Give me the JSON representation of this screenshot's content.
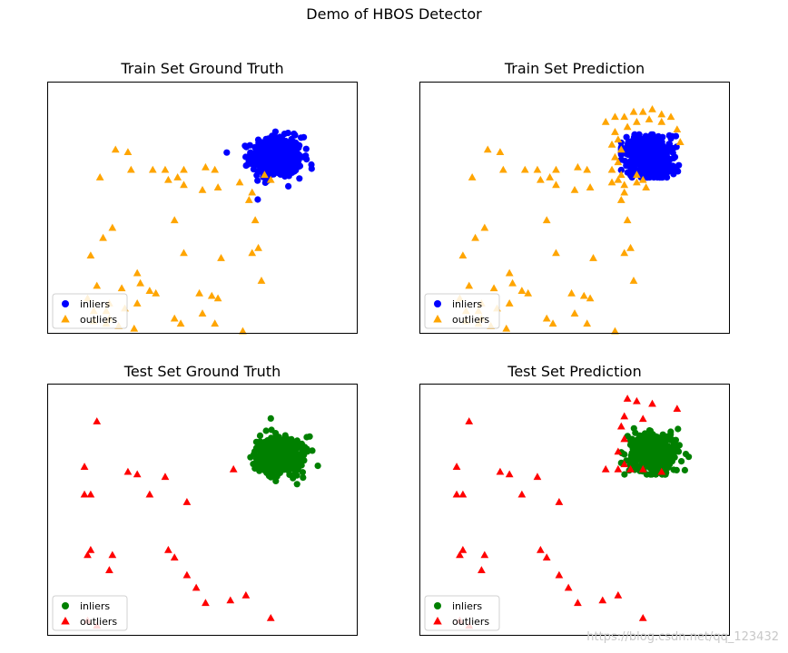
{
  "figure_title": "Demo of HBOS Detector",
  "watermark": "https://blog.csdn.net/qq_123432",
  "chart_data": [
    {
      "type": "scatter",
      "title": "Train Set Ground Truth",
      "xlim": [
        0,
        10
      ],
      "ylim": [
        0,
        10
      ],
      "grid": false,
      "legend": "lower-left",
      "series": [
        {
          "name": "inliers",
          "marker": "circle",
          "color": "#0000ff",
          "cluster": {
            "cx": 7.4,
            "cy": 7.0,
            "sx": 0.4,
            "sy": 0.4,
            "n": 500
          },
          "points": []
        },
        {
          "name": "outliers",
          "marker": "triangle",
          "color": "#ffa500",
          "points": [
            [
              2.2,
              7.3
            ],
            [
              2.6,
              7.2
            ],
            [
              1.7,
              6.2
            ],
            [
              2.7,
              6.5
            ],
            [
              3.4,
              6.5
            ],
            [
              3.8,
              6.5
            ],
            [
              4.4,
              6.5
            ],
            [
              5.1,
              6.6
            ],
            [
              5.4,
              6.5
            ],
            [
              3.9,
              6.1
            ],
            [
              4.2,
              6.2
            ],
            [
              4.4,
              5.9
            ],
            [
              5.0,
              5.7
            ],
            [
              5.5,
              5.8
            ],
            [
              6.2,
              6.0
            ],
            [
              7.0,
              6.3
            ],
            [
              7.2,
              6.1
            ],
            [
              6.6,
              5.6
            ],
            [
              6.5,
              5.3
            ],
            [
              4.1,
              4.5
            ],
            [
              2.1,
              4.2
            ],
            [
              6.7,
              4.5
            ],
            [
              1.8,
              3.8
            ],
            [
              1.4,
              3.1
            ],
            [
              4.4,
              3.2
            ],
            [
              5.6,
              3.0
            ],
            [
              6.6,
              3.2
            ],
            [
              6.8,
              3.4
            ],
            [
              2.9,
              2.4
            ],
            [
              3.0,
              2.0
            ],
            [
              1.6,
              1.9
            ],
            [
              2.4,
              1.8
            ],
            [
              3.5,
              1.6
            ],
            [
              3.3,
              1.7
            ],
            [
              6.9,
              2.1
            ],
            [
              4.9,
              1.6
            ],
            [
              5.3,
              1.5
            ],
            [
              5.5,
              1.4
            ],
            [
              1.3,
              1.4
            ],
            [
              2.0,
              1.2
            ],
            [
              2.9,
              1.2
            ],
            [
              1.5,
              0.9
            ],
            [
              1.9,
              0.9
            ],
            [
              2.5,
              1.0
            ],
            [
              2.0,
              0.6
            ],
            [
              2.3,
              0.3
            ],
            [
              4.1,
              0.6
            ],
            [
              5.0,
              0.8
            ],
            [
              5.4,
              0.4
            ],
            [
              4.3,
              0.4
            ],
            [
              1.5,
              0.5
            ],
            [
              1.9,
              0.4
            ],
            [
              2.8,
              0.2
            ],
            [
              6.3,
              0.1
            ]
          ]
        }
      ]
    },
    {
      "type": "scatter",
      "title": "Train Set Prediction",
      "xlim": [
        0,
        10
      ],
      "ylim": [
        0,
        10
      ],
      "grid": false,
      "legend": "lower-left",
      "series": [
        {
          "name": "inliers",
          "marker": "circle",
          "color": "#0000ff",
          "cluster": {
            "cx": 7.4,
            "cy": 7.0,
            "sx": 0.4,
            "sy": 0.4,
            "n": 500,
            "box": [
              6.5,
              8.6,
              6.2,
              7.9
            ]
          },
          "points": []
        },
        {
          "name": "outliers",
          "marker": "triangle",
          "color": "#ffa500",
          "points": [
            [
              2.2,
              7.3
            ],
            [
              2.6,
              7.2
            ],
            [
              1.7,
              6.2
            ],
            [
              2.7,
              6.5
            ],
            [
              3.4,
              6.5
            ],
            [
              3.8,
              6.5
            ],
            [
              4.4,
              6.5
            ],
            [
              5.1,
              6.6
            ],
            [
              5.4,
              6.5
            ],
            [
              3.9,
              6.1
            ],
            [
              4.2,
              6.2
            ],
            [
              4.4,
              5.9
            ],
            [
              5.0,
              5.7
            ],
            [
              5.5,
              5.8
            ],
            [
              6.2,
              6.0
            ],
            [
              7.0,
              6.3
            ],
            [
              7.2,
              6.1
            ],
            [
              6.6,
              5.6
            ],
            [
              6.5,
              5.3
            ],
            [
              4.1,
              4.5
            ],
            [
              2.1,
              4.2
            ],
            [
              6.7,
              4.5
            ],
            [
              1.8,
              3.8
            ],
            [
              1.4,
              3.1
            ],
            [
              4.4,
              3.2
            ],
            [
              5.6,
              3.0
            ],
            [
              6.6,
              3.2
            ],
            [
              6.8,
              3.4
            ],
            [
              2.9,
              2.4
            ],
            [
              3.0,
              2.0
            ],
            [
              1.6,
              1.9
            ],
            [
              2.4,
              1.8
            ],
            [
              3.5,
              1.6
            ],
            [
              3.3,
              1.7
            ],
            [
              6.9,
              2.1
            ],
            [
              4.9,
              1.6
            ],
            [
              5.3,
              1.5
            ],
            [
              5.5,
              1.4
            ],
            [
              1.3,
              1.4
            ],
            [
              2.0,
              1.2
            ],
            [
              2.9,
              1.2
            ],
            [
              1.5,
              0.9
            ],
            [
              1.9,
              0.9
            ],
            [
              2.5,
              1.0
            ],
            [
              2.0,
              0.6
            ],
            [
              2.3,
              0.3
            ],
            [
              4.1,
              0.6
            ],
            [
              5.0,
              0.8
            ],
            [
              5.4,
              0.4
            ],
            [
              4.3,
              0.4
            ],
            [
              1.5,
              0.5
            ],
            [
              1.9,
              0.4
            ],
            [
              2.8,
              0.2
            ],
            [
              6.3,
              0.1
            ],
            [
              6.0,
              8.4
            ],
            [
              6.3,
              8.6
            ],
            [
              6.6,
              8.6
            ],
            [
              6.9,
              8.8
            ],
            [
              7.2,
              8.8
            ],
            [
              7.5,
              8.9
            ],
            [
              7.8,
              8.7
            ],
            [
              8.1,
              8.6
            ],
            [
              8.3,
              8.1
            ],
            [
              8.4,
              7.6
            ],
            [
              6.3,
              8.0
            ],
            [
              6.2,
              7.5
            ],
            [
              6.3,
              7.0
            ],
            [
              6.2,
              6.5
            ],
            [
              6.4,
              6.1
            ],
            [
              6.6,
              5.9
            ],
            [
              7.0,
              6.0
            ],
            [
              7.3,
              5.8
            ],
            [
              6.4,
              7.7
            ],
            [
              6.5,
              7.3
            ],
            [
              6.4,
              6.8
            ],
            [
              6.5,
              6.3
            ],
            [
              6.7,
              8.2
            ],
            [
              7.0,
              8.4
            ],
            [
              7.4,
              8.5
            ],
            [
              7.8,
              8.4
            ]
          ]
        }
      ]
    },
    {
      "type": "scatter",
      "title": "Test Set Ground Truth",
      "xlim": [
        0,
        10
      ],
      "ylim": [
        0,
        10
      ],
      "grid": false,
      "legend": "lower-left",
      "series": [
        {
          "name": "inliers",
          "marker": "circle",
          "color": "#008000",
          "cluster": {
            "cx": 7.5,
            "cy": 7.2,
            "sx": 0.4,
            "sy": 0.4,
            "n": 400
          },
          "points": []
        },
        {
          "name": "outliers",
          "marker": "triangle",
          "color": "#ff0000",
          "points": [
            [
              1.6,
              8.5
            ],
            [
              1.2,
              6.7
            ],
            [
              1.2,
              5.6
            ],
            [
              1.4,
              5.6
            ],
            [
              2.6,
              6.5
            ],
            [
              2.9,
              6.4
            ],
            [
              3.8,
              6.3
            ],
            [
              3.3,
              5.6
            ],
            [
              4.5,
              5.3
            ],
            [
              6.0,
              6.6
            ],
            [
              1.4,
              3.4
            ],
            [
              1.3,
              3.2
            ],
            [
              2.1,
              3.2
            ],
            [
              2.0,
              2.6
            ],
            [
              3.9,
              3.4
            ],
            [
              4.1,
              3.1
            ],
            [
              4.5,
              2.4
            ],
            [
              4.8,
              1.9
            ],
            [
              5.1,
              1.3
            ],
            [
              5.9,
              1.4
            ],
            [
              6.4,
              1.6
            ],
            [
              7.2,
              0.7
            ],
            [
              1.3,
              0.6
            ],
            [
              1.6,
              0.4
            ]
          ]
        }
      ]
    },
    {
      "type": "scatter",
      "title": "Test Set Prediction",
      "xlim": [
        0,
        10
      ],
      "ylim": [
        0,
        10
      ],
      "grid": false,
      "legend": "lower-left",
      "series": [
        {
          "name": "inliers",
          "marker": "circle",
          "color": "#008000",
          "cluster": {
            "cx": 7.5,
            "cy": 7.2,
            "sx": 0.4,
            "sy": 0.4,
            "n": 400,
            "box": [
              6.5,
              8.8,
              6.4,
              8.3
            ]
          },
          "points": []
        },
        {
          "name": "outliers",
          "marker": "triangle",
          "color": "#ff0000",
          "points": [
            [
              1.6,
              8.5
            ],
            [
              1.2,
              6.7
            ],
            [
              1.2,
              5.6
            ],
            [
              1.4,
              5.6
            ],
            [
              2.6,
              6.5
            ],
            [
              2.9,
              6.4
            ],
            [
              3.8,
              6.3
            ],
            [
              3.3,
              5.6
            ],
            [
              4.5,
              5.3
            ],
            [
              6.0,
              6.6
            ],
            [
              1.4,
              3.4
            ],
            [
              1.3,
              3.2
            ],
            [
              2.1,
              3.2
            ],
            [
              2.0,
              2.6
            ],
            [
              3.9,
              3.4
            ],
            [
              4.1,
              3.1
            ],
            [
              4.5,
              2.4
            ],
            [
              4.8,
              1.9
            ],
            [
              5.1,
              1.3
            ],
            [
              5.9,
              1.4
            ],
            [
              6.4,
              1.6
            ],
            [
              7.2,
              0.7
            ],
            [
              1.3,
              0.6
            ],
            [
              1.6,
              0.4
            ],
            [
              6.7,
              9.4
            ],
            [
              7.0,
              9.3
            ],
            [
              7.5,
              9.2
            ],
            [
              8.3,
              9.0
            ],
            [
              6.6,
              8.7
            ],
            [
              7.2,
              8.6
            ],
            [
              6.5,
              8.3
            ],
            [
              6.6,
              7.8
            ],
            [
              6.4,
              7.3
            ],
            [
              6.6,
              6.8
            ],
            [
              6.8,
              6.6
            ],
            [
              7.2,
              6.6
            ],
            [
              7.8,
              6.5
            ],
            [
              6.4,
              6.6
            ]
          ]
        }
      ]
    }
  ]
}
